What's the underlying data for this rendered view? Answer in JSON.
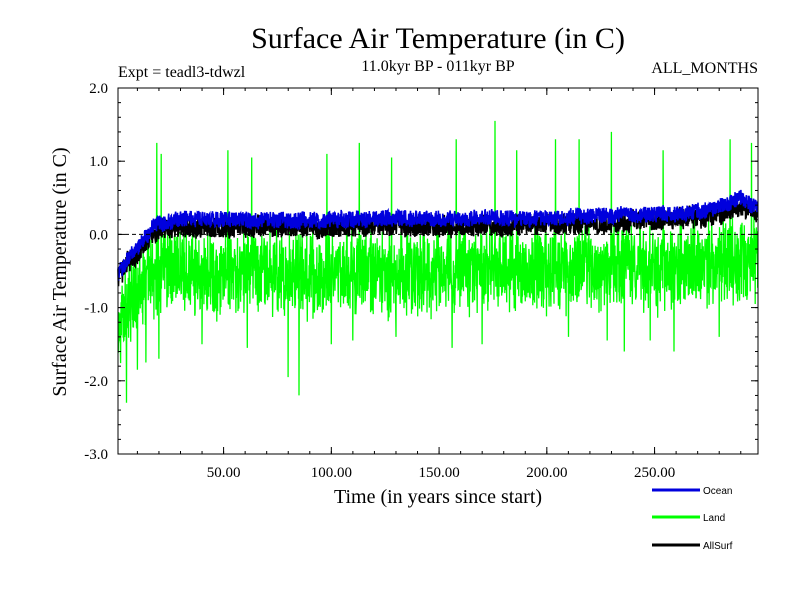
{
  "chart_data": {
    "type": "line",
    "title": "Surface Air Temperature (in C)",
    "subtitle_left": "Expt = teadl3-tdwzl",
    "subtitle_center": "11.0kyr BP - 011kyr BP",
    "subtitle_right": "ALL_MONTHS",
    "xlabel": "Time (in years since start)",
    "ylabel": "Surface Air Temperature (in C)",
    "xlim": [
      1,
      298
    ],
    "ylim": [
      -3.0,
      2.0
    ],
    "x_ticks": [
      {
        "value": 50,
        "label": "50.00"
      },
      {
        "value": 100,
        "label": "100.00"
      },
      {
        "value": 150,
        "label": "150.00"
      },
      {
        "value": 200,
        "label": "200.00"
      },
      {
        "value": 250,
        "label": "250.00"
      }
    ],
    "y_ticks": [
      {
        "value": 2.0,
        "label": "2.0"
      },
      {
        "value": 1.0,
        "label": "1.0"
      },
      {
        "value": 0.0,
        "label": "0.0"
      },
      {
        "value": -1.0,
        "label": "-1.0"
      },
      {
        "value": -2.0,
        "label": "-2.0"
      },
      {
        "value": -3.0,
        "label": "-3.0"
      }
    ],
    "zero_line": 0.0,
    "legend_position": "bottom-right",
    "series": [
      {
        "name": "Land",
        "color": "#00ff00",
        "keypoints": [
          [
            1,
            -1.3
          ],
          [
            5,
            -1.0
          ],
          [
            10,
            -0.9
          ],
          [
            15,
            -0.6
          ],
          [
            20,
            -0.45
          ],
          [
            30,
            -0.5
          ],
          [
            50,
            -0.55
          ],
          [
            75,
            -0.5
          ],
          [
            100,
            -0.55
          ],
          [
            125,
            -0.5
          ],
          [
            150,
            -0.5
          ],
          [
            175,
            -0.45
          ],
          [
            200,
            -0.5
          ],
          [
            225,
            -0.45
          ],
          [
            250,
            -0.5
          ],
          [
            275,
            -0.4
          ],
          [
            298,
            -0.35
          ]
        ],
        "spread": 0.45,
        "spikes_high": [
          [
            19,
            1.25
          ],
          [
            21,
            1.1
          ],
          [
            52,
            1.15
          ],
          [
            63,
            1.05
          ],
          [
            98,
            1.1
          ],
          [
            113,
            1.25
          ],
          [
            128,
            1.05
          ],
          [
            158,
            1.3
          ],
          [
            176,
            1.55
          ],
          [
            186,
            1.15
          ],
          [
            204,
            1.3
          ],
          [
            215,
            1.3
          ],
          [
            230,
            1.4
          ],
          [
            254,
            1.15
          ],
          [
            285,
            1.3
          ],
          [
            295,
            1.25
          ]
        ],
        "spikes_low": [
          [
            5,
            -2.3
          ],
          [
            10,
            -1.85
          ],
          [
            14,
            -1.75
          ],
          [
            20,
            -1.7
          ],
          [
            40,
            -1.5
          ],
          [
            61,
            -1.55
          ],
          [
            80,
            -1.95
          ],
          [
            85,
            -2.2
          ],
          [
            100,
            -1.5
          ],
          [
            110,
            -1.45
          ],
          [
            130,
            -1.4
          ],
          [
            156,
            -1.55
          ],
          [
            170,
            -1.5
          ],
          [
            210,
            -1.4
          ],
          [
            228,
            -1.45
          ],
          [
            236,
            -1.6
          ],
          [
            248,
            -1.45
          ],
          [
            259,
            -1.6
          ],
          [
            280,
            -1.4
          ]
        ]
      },
      {
        "name": "AllSurf",
        "color": "#000000",
        "keypoints": [
          [
            1,
            -0.6
          ],
          [
            5,
            -0.4
          ],
          [
            10,
            -0.25
          ],
          [
            15,
            -0.05
          ],
          [
            20,
            0.05
          ],
          [
            30,
            0.1
          ],
          [
            50,
            0.1
          ],
          [
            75,
            0.1
          ],
          [
            100,
            0.1
          ],
          [
            125,
            0.12
          ],
          [
            150,
            0.12
          ],
          [
            175,
            0.12
          ],
          [
            200,
            0.12
          ],
          [
            225,
            0.15
          ],
          [
            250,
            0.2
          ],
          [
            275,
            0.25
          ],
          [
            290,
            0.35
          ],
          [
            298,
            0.3
          ]
        ],
        "spread": 0.14
      },
      {
        "name": "Ocean",
        "color": "#0000dd",
        "keypoints": [
          [
            1,
            -0.55
          ],
          [
            5,
            -0.35
          ],
          [
            10,
            -0.2
          ],
          [
            15,
            0.0
          ],
          [
            20,
            0.15
          ],
          [
            30,
            0.2
          ],
          [
            50,
            0.2
          ],
          [
            75,
            0.2
          ],
          [
            100,
            0.2
          ],
          [
            125,
            0.22
          ],
          [
            150,
            0.22
          ],
          [
            175,
            0.22
          ],
          [
            200,
            0.22
          ],
          [
            225,
            0.25
          ],
          [
            250,
            0.28
          ],
          [
            275,
            0.32
          ],
          [
            290,
            0.5
          ],
          [
            298,
            0.35
          ]
        ],
        "spread": 0.11
      }
    ]
  }
}
